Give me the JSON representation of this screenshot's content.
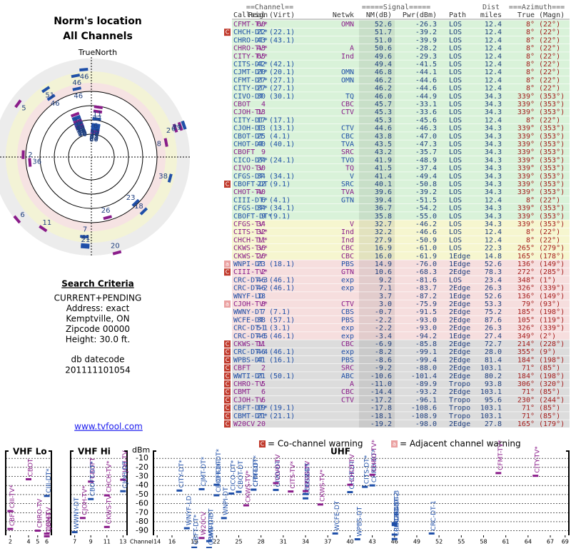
{
  "header": {
    "title": "Norm's location",
    "subtitle": "All Channels",
    "north": "TrueNorth"
  },
  "criteria": {
    "title": "Search Criteria",
    "lines": [
      "CURRENT+PENDING",
      "Address: exact",
      "Kemptville, ON",
      "Zipcode 00000",
      "Height: 30.0 ft."
    ],
    "db_label": "db datecode",
    "db_code": "201111101054",
    "link": "www.tvfool.com"
  },
  "table": {
    "header1": [
      "==Channel==",
      "=====Signal=====",
      "Dist",
      "===Azimuth==="
    ],
    "header2": [
      "Callsign",
      "Real",
      "(Virt)",
      "Netwk",
      "NM(dB)",
      "Pwr(dBm)",
      "Path",
      "miles",
      "True",
      "(Magn)"
    ],
    "groups": [
      {
        "color": "#d9f2d9",
        "rows": [
          [
            null,
            "CFMT-TV*",
            60,
            null,
            "OMN",
            "52.6",
            "-26.3",
            "LOS",
            "12.4",
            "8°",
            "(22°)"
          ],
          [
            "C",
            "CHCH-DT*",
            22,
            "(22.1)",
            null,
            "51.7",
            "-39.2",
            "LOS",
            "12.4",
            "8°",
            "(22°)"
          ],
          [
            null,
            "CHRO-DT*",
            43,
            "(43.1)",
            null,
            "51.0",
            "-39.9",
            "LOS",
            "12.4",
            "8°",
            "(22°)"
          ],
          [
            null,
            "CHRO-TV*",
            43,
            null,
            "A",
            "50.6",
            "-28.2",
            "LOS",
            "12.4",
            "8°",
            "(22°)"
          ],
          [
            null,
            "CITY-TV*",
            65,
            null,
            "Ind",
            "49.6",
            "-29.3",
            "LOS",
            "12.4",
            "8°",
            "(22°)"
          ],
          [
            null,
            "CITS-DT*",
            42,
            "(42.1)",
            null,
            "49.4",
            "-41.5",
            "LOS",
            "12.4",
            "8°",
            "(22°)"
          ],
          [
            null,
            "CJMT-DT*",
            20,
            "(20.1)",
            "OMN",
            "46.8",
            "-44.1",
            "LOS",
            "12.4",
            "8°",
            "(22°)"
          ],
          [
            null,
            "CFMT-DT*",
            27,
            "(27.1)",
            "OMN",
            "46.2",
            "-44.6",
            "LOS",
            "12.4",
            "8°",
            "(22°)"
          ],
          [
            null,
            "CITY-DT*",
            27,
            "(27.1)",
            null,
            "46.2",
            "-44.6",
            "LOS",
            "12.4",
            "8°",
            "(22°)"
          ],
          [
            null,
            "CIVO-DT",
            30,
            "(30.1)",
            "TQ",
            "46.0",
            "-44.9",
            "LOS",
            "34.3",
            "339°",
            "(353°)"
          ],
          [
            null,
            "CBOT",
            4,
            null,
            "CBC",
            "45.7",
            "-33.1",
            "LOS",
            "34.3",
            "339°",
            "(353°)"
          ],
          [
            null,
            "CJOH-TV",
            13,
            null,
            "CTV",
            "45.3",
            "-33.6",
            "LOS",
            "34.3",
            "339°",
            "(353°)"
          ],
          [
            null,
            "CITY-DT*",
            17,
            "(17.1)",
            null,
            "45.3",
            "-45.6",
            "LOS",
            "12.4",
            "8°",
            "(22°)"
          ],
          [
            null,
            "CJOH-DT",
            13,
            "(13.1)",
            "CTV",
            "44.6",
            "-46.3",
            "LOS",
            "34.3",
            "339°",
            "(353°)"
          ],
          [
            null,
            "CBOT-DT",
            25,
            "(4.1)",
            "CBC",
            "43.8",
            "-47.0",
            "LOS",
            "34.3",
            "339°",
            "(353°)"
          ],
          [
            null,
            "CHOT-DT",
            40,
            "(40.1)",
            "TVA",
            "43.5",
            "-47.3",
            "LOS",
            "34.3",
            "339°",
            "(353°)"
          ],
          [
            null,
            "CBOFT",
            9,
            null,
            "SRC",
            "43.2",
            "-35.7",
            "LOS",
            "34.3",
            "339°",
            "(353°)"
          ],
          [
            null,
            "CICO-DT*",
            24,
            "(24.1)",
            "TVO",
            "41.9",
            "-48.9",
            "LOS",
            "34.3",
            "339°",
            "(353°)"
          ],
          [
            null,
            "CIVO-TV",
            30,
            null,
            "TQ",
            "41.5",
            "-37.4",
            "LOS",
            "34.3",
            "339°",
            "(353°)"
          ],
          [
            null,
            "CFGS-DT",
            34,
            "(34.1)",
            "V",
            "41.4",
            "-49.4",
            "LOS",
            "34.3",
            "339°",
            "(353°)"
          ],
          [
            "C",
            "CBOFT-DT",
            22,
            "(9.1)",
            "SRC",
            "40.1",
            "-50.8",
            "LOS",
            "34.3",
            "339°",
            "(353°)"
          ],
          [
            null,
            "CHOT-TV",
            40,
            null,
            "TVA",
            "39.6",
            "-39.2",
            "LOS",
            "34.3",
            "339°",
            "(353°)"
          ],
          [
            null,
            "CIII-DT*",
            6,
            "(4.1)",
            "GTN",
            "39.4",
            "-51.5",
            "LOS",
            "12.4",
            "8°",
            "(22°)"
          ],
          [
            null,
            "CFGS-DT*",
            34,
            "(34.1)",
            null,
            "36.7",
            "-54.2",
            "LOS",
            "34.3",
            "339°",
            "(353°)"
          ],
          [
            null,
            "CBOFT-DT*",
            9,
            "(9.1)",
            null,
            "35.8",
            "-55.0",
            "LOS",
            "34.3",
            "339°",
            "(353°)"
          ]
        ]
      },
      {
        "color": "#f6f6cf",
        "rows": [
          [
            null,
            "CFGS-TV",
            34,
            null,
            "V",
            "32.7",
            "-46.2",
            "LOS",
            "34.3",
            "339°",
            "(353°)"
          ],
          [
            null,
            "CITS-TV*",
            32,
            null,
            "Ind",
            "32.2",
            "-46.6",
            "LOS",
            "12.4",
            "8°",
            "(22°)"
          ],
          [
            null,
            "CHCH-TV*",
            11,
            null,
            "Ind",
            "27.9",
            "-50.9",
            "LOS",
            "12.4",
            "8°",
            "(22°)"
          ],
          [
            null,
            "CKWS-TV*",
            36,
            null,
            "CBC",
            "16.9",
            "-61.0",
            "LOS",
            "22.3",
            "265°",
            "(279°)"
          ],
          [
            null,
            "CKWS-TV*",
            26,
            null,
            "CBC",
            "16.0",
            "-61.9",
            "1Edge",
            "14.8",
            "165°",
            "(178°)"
          ]
        ]
      },
      {
        "color": "#f6dede",
        "rows": [
          [
            "a",
            "WNPI-DT",
            23,
            "(18.1)",
            "PBS",
            "14.9",
            "-76.0",
            "1Edge",
            "52.6",
            "136°",
            "(149°)"
          ],
          [
            "C",
            "CIII-TV*",
            2,
            null,
            "GTN",
            "10.6",
            "-68.3",
            "2Edge",
            "78.3",
            "272°",
            "(285°)"
          ],
          [
            null,
            "CRC-DT-3",
            46,
            "(46.1)",
            "exp",
            "9.2",
            "-81.6",
            "LOS",
            "23.4",
            "348°",
            "(1°)"
          ],
          [
            null,
            "CRC-DT-2",
            46,
            "(46.1)",
            "exp",
            "7.1",
            "-83.7",
            "2Edge",
            "26.3",
            "326°",
            "(339°)"
          ],
          [
            null,
            "WNYF-LD",
            18,
            null,
            null,
            "3.7",
            "-87.2",
            "1Edge",
            "52.6",
            "136°",
            "(149°)"
          ],
          [
            "a",
            "CJOH-TV*",
            8,
            null,
            "CTV",
            "3.0",
            "-75.9",
            "2Edge",
            "53.3",
            "79°",
            "(93°)"
          ],
          [
            null,
            "WWNY-DT",
            7,
            "(7.1)",
            "CBS",
            "-0.7",
            "-91.5",
            "2Edge",
            "75.2",
            "185°",
            "(198°)"
          ],
          [
            null,
            "WCFE-DT",
            38,
            "(57.1)",
            "PBS",
            "-2.2",
            "-93.0",
            "2Edge",
            "87.6",
            "105°",
            "(119°)"
          ],
          [
            null,
            "CRC-DT-1",
            51,
            "(3.1)",
            "exp",
            "-2.2",
            "-93.0",
            "2Edge",
            "26.3",
            "326°",
            "(339°)"
          ],
          [
            null,
            "CRC-DT-5",
            46,
            "(46.1)",
            "exp",
            "-3.4",
            "-94.2",
            "1Edge",
            "27.4",
            "349°",
            "(2°)"
          ]
        ]
      },
      {
        "color": "#dcdcdc",
        "rows": [
          [
            "C",
            "CKWS-TV",
            11,
            null,
            "CBC",
            "-6.9",
            "-85.8",
            "2Edge",
            "72.7",
            "214°",
            "(228°)"
          ],
          [
            "C",
            "CRC-DT-4",
            46,
            "(46.1)",
            "exp",
            "-8.2",
            "-99.1",
            "2Edge",
            "28.0",
            "355°",
            "(9°)"
          ],
          [
            "C",
            "WPBS-DT",
            41,
            "(16.1)",
            "PBS",
            "-8.6",
            "-99.4",
            "2Edge",
            "81.4",
            "184°",
            "(198°)"
          ],
          [
            "C",
            "CBFT",
            2,
            null,
            "SRC",
            "-9.2",
            "-88.0",
            "2Edge",
            "103.1",
            "71°",
            "(85°)"
          ],
          [
            "C",
            "WWTI-DT",
            21,
            "(50.1)",
            "ABC",
            "-10.6",
            "-101.4",
            "2Edge",
            "80.2",
            "184°",
            "(198°)"
          ],
          [
            "C",
            "CHRO-TV",
            5,
            null,
            "A",
            "-11.0",
            "-89.9",
            "Tropo",
            "93.8",
            "306°",
            "(320°)"
          ],
          [
            "C",
            "CBMT",
            6,
            null,
            "CBC",
            "-14.4",
            "-93.2",
            "2Edge",
            "103.1",
            "71°",
            "(85°)"
          ],
          [
            "C",
            "CJOH-TV",
            6,
            null,
            "CTV",
            "-17.2",
            "-96.1",
            "Tropo",
            "95.6",
            "230°",
            "(244°)"
          ],
          [
            "C",
            "CBFT-DT*",
            19,
            "(19.1)",
            null,
            "-17.8",
            "-108.6",
            "Tropo",
            "103.1",
            "71°",
            "(85°)"
          ],
          [
            "C",
            "CBMT-DT*",
            21,
            "(21.1)",
            null,
            "-18.1",
            "-108.9",
            "Tropo",
            "103.1",
            "71°",
            "(85°)"
          ],
          [
            "C",
            "W20CV",
            20,
            null,
            null,
            "-19.2",
            "-98.0",
            "2Edge",
            "27.8",
            "165°",
            "(179°)"
          ]
        ]
      }
    ]
  },
  "spectrum": {
    "legend": [
      {
        "icon": "C",
        "text": "= Co-channel warning"
      },
      {
        "icon": "a",
        "text": "= Adjacent channel warning"
      }
    ],
    "y_label": "dBm",
    "x_label": "Channel",
    "ylim": [
      -2,
      -95
    ],
    "yticks": [
      -10,
      -20,
      -30,
      -40,
      -50,
      -60,
      -70,
      -80,
      -90
    ],
    "panels": [
      {
        "title": "VHF Lo",
        "xlim": [
          1.5,
          6.5
        ],
        "ticks": [
          2,
          4,
          5,
          6
        ]
      },
      {
        "title": "VHF Hi",
        "xlim": [
          6.5,
          13.5
        ],
        "ticks": [
          7,
          9,
          11,
          13
        ]
      },
      {
        "title": "UHF",
        "xlim": [
          13.5,
          69.5
        ],
        "ticks": [
          14,
          16,
          19,
          22,
          25,
          28,
          31,
          34,
          37,
          40,
          43,
          46,
          49,
          52,
          55,
          58,
          61,
          64,
          67,
          69
        ]
      }
    ]
  }
}
